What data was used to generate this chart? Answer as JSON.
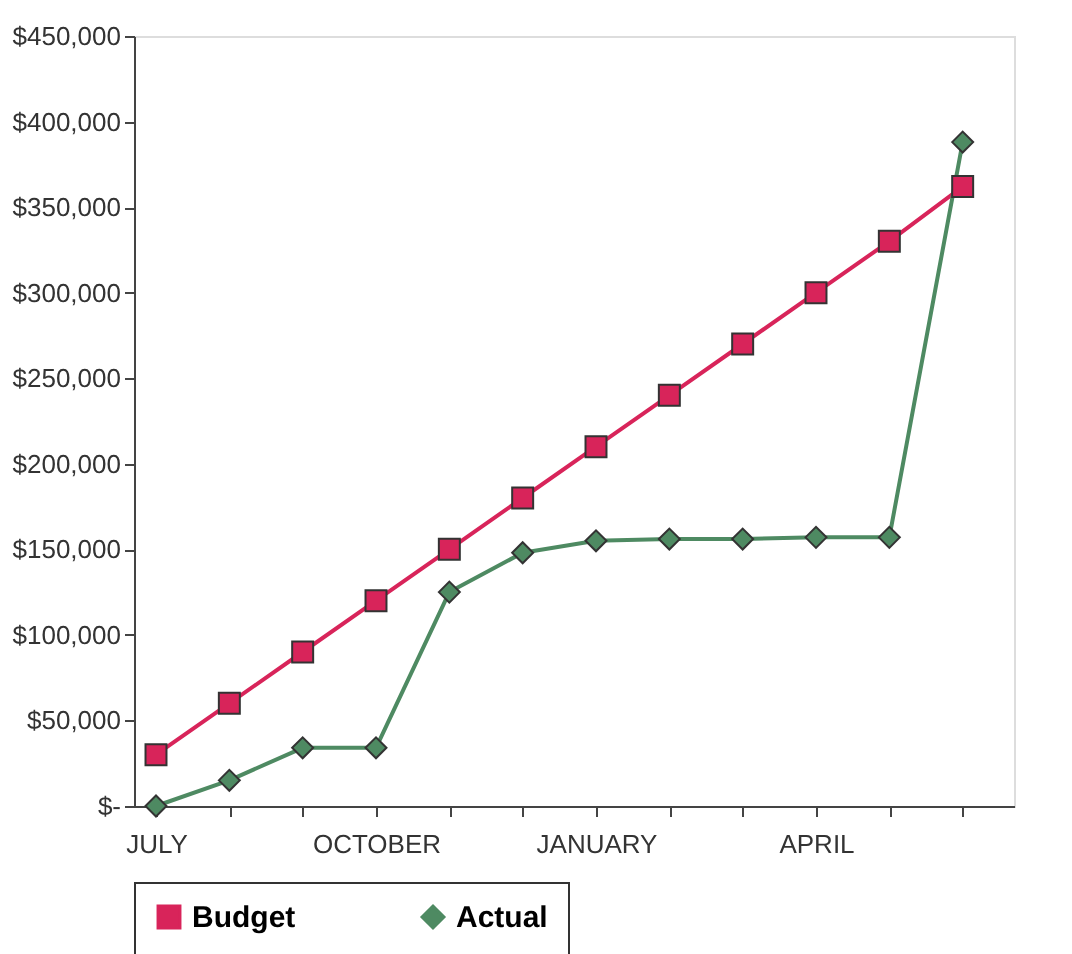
{
  "chart_data": {
    "type": "line",
    "categories": [
      "JULY",
      null,
      null,
      "OCTOBER",
      null,
      null,
      "JANUARY",
      null,
      null,
      "APRIL",
      null,
      null
    ],
    "series": [
      {
        "name": "Budget",
        "color": "#d8245a",
        "marker": "square",
        "values": [
          30000,
          60000,
          90000,
          120000,
          150000,
          180000,
          210000,
          240000,
          270000,
          300000,
          330000,
          362000
        ]
      },
      {
        "name": "Actual",
        "color": "#4e8a62",
        "marker": "diamond",
        "values": [
          0,
          15000,
          34000,
          34000,
          125000,
          148000,
          155000,
          156000,
          156000,
          157000,
          157000,
          388000
        ]
      }
    ],
    "ylim": [
      0,
      450000
    ],
    "yticks": [
      {
        "value": 0,
        "label": "$-"
      },
      {
        "value": 50000,
        "label": "$50,000"
      },
      {
        "value": 100000,
        "label": "$100,000"
      },
      {
        "value": 150000,
        "label": "$150,000"
      },
      {
        "value": 200000,
        "label": "$200,000"
      },
      {
        "value": 250000,
        "label": "$250,000"
      },
      {
        "value": 300000,
        "label": "$300,000"
      },
      {
        "value": 350000,
        "label": "$350,000"
      },
      {
        "value": 400000,
        "label": "$400,000"
      },
      {
        "value": 450000,
        "label": "$450,000"
      }
    ],
    "grid": false,
    "legend": "bottom"
  }
}
